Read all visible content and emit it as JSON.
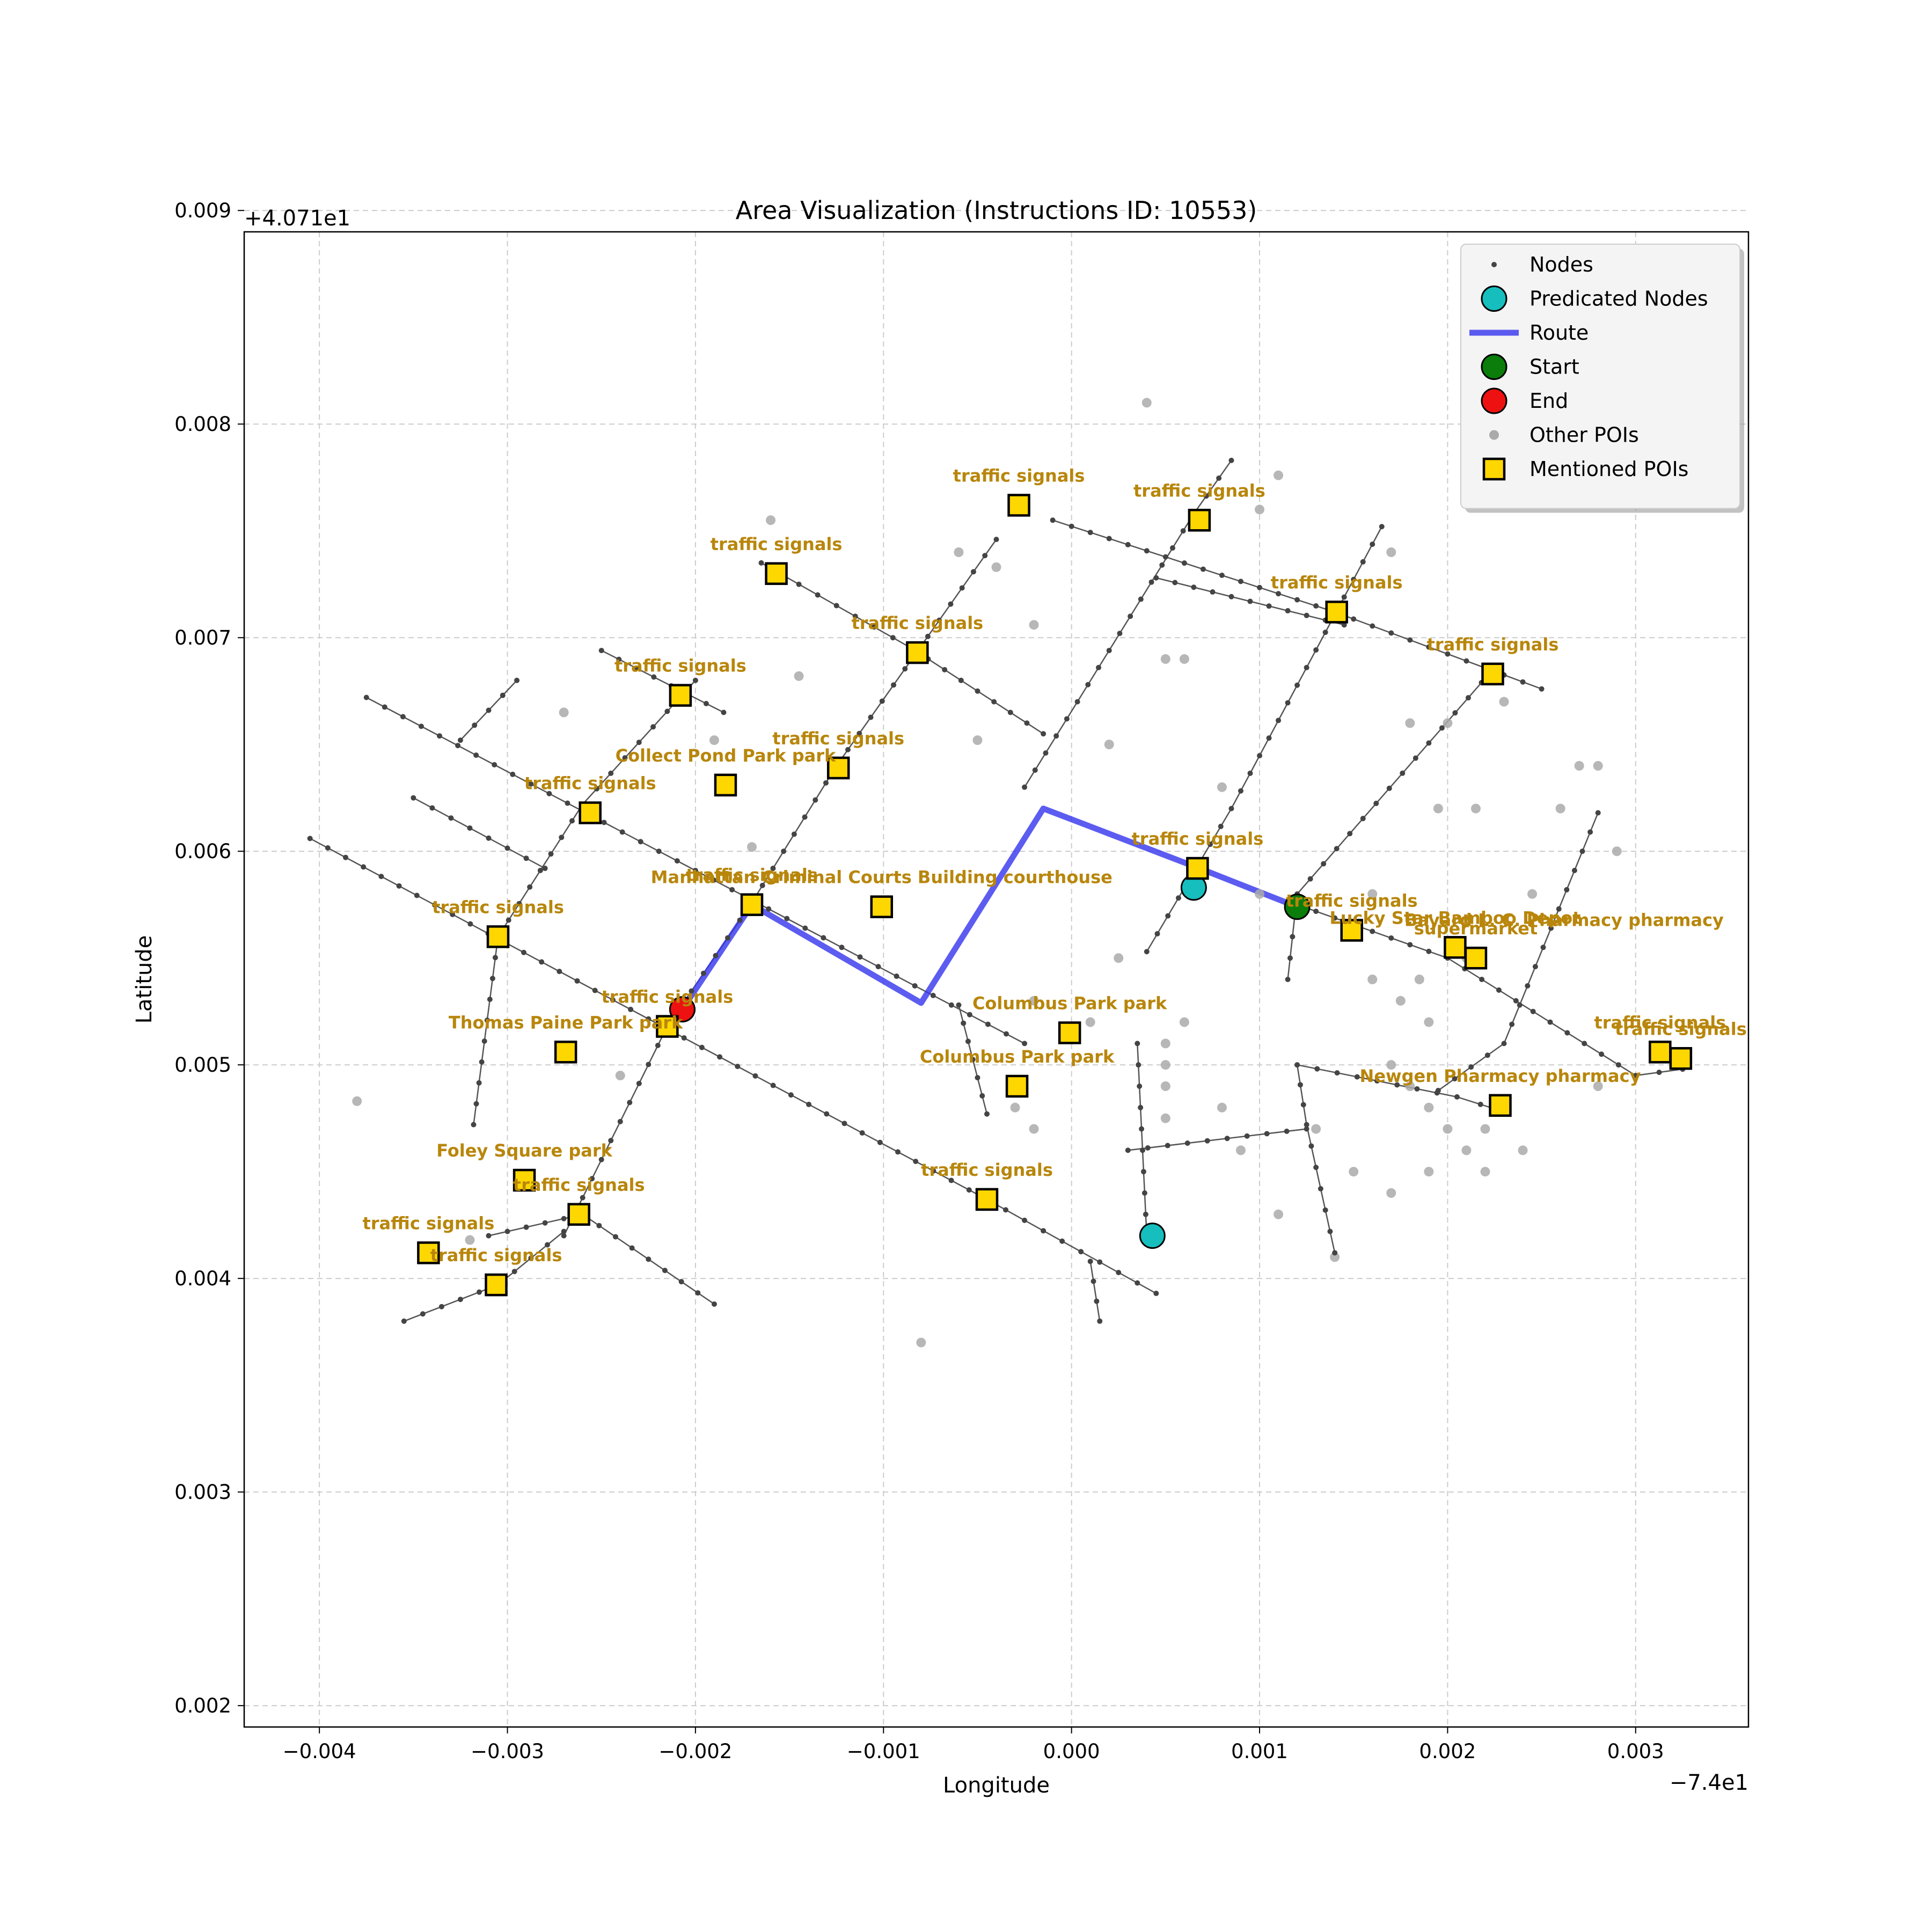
{
  "chart_data": {
    "type": "map",
    "title": "Area Visualization (Instructions ID: 10553)",
    "xlabel": "Longitude",
    "ylabel": "Latitude",
    "x_offset_label": "−7.4e1",
    "y_offset_label": "+4.071e1",
    "xlim": [
      -0.0044,
      0.0036
    ],
    "ylim": [
      0.0019,
      0.0089
    ],
    "x_ticks": [
      -0.004,
      -0.003,
      -0.002,
      -0.001,
      0.0,
      0.001,
      0.002,
      0.003
    ],
    "x_tick_labels": [
      "−0.004",
      "−0.003",
      "−0.002",
      "−0.001",
      "0.000",
      "0.001",
      "0.002",
      "0.003"
    ],
    "y_ticks": [
      0.002,
      0.003,
      0.004,
      0.005,
      0.006,
      0.007,
      0.008,
      0.009
    ],
    "y_tick_labels": [
      "0.002",
      "0.003",
      "0.004",
      "0.005",
      "0.006",
      "0.007",
      "0.008",
      "0.009"
    ],
    "grid": true,
    "legend": {
      "placement": "top-right",
      "entries": [
        {
          "name": "Nodes",
          "marker": "node"
        },
        {
          "name": "Predicated Nodes",
          "marker": "predicated"
        },
        {
          "name": "Route",
          "marker": "route"
        },
        {
          "name": "Start",
          "marker": "start"
        },
        {
          "name": "End",
          "marker": "end"
        },
        {
          "name": "Other POIs",
          "marker": "other"
        },
        {
          "name": "Mentioned POIs",
          "marker": "mentioned"
        }
      ]
    },
    "colors": {
      "node": "#444444",
      "edge": "#555555",
      "route": "#3333ee",
      "predicated": "#17bebe",
      "start": "#0a7d0a",
      "end": "#ee1111",
      "other_poi": "#aaaaaa",
      "mentioned_poi": "#ffd700",
      "poi_label": "#b8860b"
    },
    "edges": [
      [
        [
          -0.00405,
          0.00606
        ],
        [
          -0.00045,
          0.00437
        ],
        [
          0.00045,
          0.00393
        ]
      ],
      [
        [
          -0.00375,
          0.00672
        ],
        [
          -0.00025,
          0.0051
        ]
      ],
      [
        [
          -0.0035,
          0.00625
        ],
        [
          -0.0028,
          0.00592
        ]
      ],
      [
        [
          -0.0025,
          0.00694
        ],
        [
          -0.00185,
          0.00665
        ]
      ],
      [
        [
          -0.00355,
          0.0038
        ],
        [
          -0.00305,
          0.00397
        ],
        [
          -0.0027,
          0.00422
        ]
      ],
      [
        [
          -0.0031,
          0.0042
        ],
        [
          -0.0026,
          0.0043
        ],
        [
          -0.0019,
          0.00388
        ]
      ],
      [
        [
          -0.00318,
          0.00472
        ],
        [
          -0.00305,
          0.0056
        ],
        [
          -0.0026,
          0.00622
        ],
        [
          -0.002,
          0.0068
        ]
      ],
      [
        [
          -0.00325,
          0.00652
        ],
        [
          -0.00295,
          0.0068
        ]
      ],
      [
        [
          -0.0027,
          0.0042
        ],
        [
          -0.00215,
          0.00518
        ],
        [
          -0.0017,
          0.00576
        ],
        [
          -0.00125,
          0.0064
        ],
        [
          -0.0004,
          0.00746
        ]
      ],
      [
        [
          -0.00165,
          0.00735
        ],
        [
          -0.00085,
          0.00695
        ],
        [
          -0.00015,
          0.00655
        ]
      ],
      [
        [
          -0.0001,
          0.00755
        ],
        [
          0.0014,
          0.00712
        ],
        [
          0.0025,
          0.00676
        ]
      ],
      [
        [
          -0.00025,
          0.0063
        ],
        [
          0.00065,
          0.00758
        ],
        [
          0.00085,
          0.00783
        ]
      ],
      [
        [
          0.00045,
          0.00728
        ],
        [
          0.00145,
          0.00706
        ]
      ],
      [
        [
          0.0004,
          0.00553
        ],
        [
          0.00085,
          0.0062
        ],
        [
          0.00165,
          0.00752
        ]
      ],
      [
        [
          0.00035,
          0.0051
        ],
        [
          0.0004,
          0.0042
        ]
      ],
      [
        [
          0.0003,
          0.0046
        ],
        [
          0.00125,
          0.0047
        ]
      ],
      [
        [
          0.0012,
          0.005
        ],
        [
          0.00125,
          0.00472
        ],
        [
          0.0014,
          0.00412
        ]
      ],
      [
        [
          0.00115,
          0.0054
        ],
        [
          0.0012,
          0.0058
        ],
        [
          0.00225,
          0.00686
        ]
      ],
      [
        [
          0.0012,
          0.005
        ],
        [
          0.00205,
          0.00485
        ],
        [
          0.0023,
          0.00478
        ]
      ],
      [
        [
          0.0012,
          0.00575
        ],
        [
          0.002,
          0.0055
        ],
        [
          0.003,
          0.00495
        ],
        [
          0.00325,
          0.00498
        ]
      ],
      [
        [
          0.00195,
          0.00488
        ],
        [
          0.0023,
          0.0051
        ],
        [
          0.0028,
          0.00618
        ]
      ],
      [
        [
          -0.0006,
          0.00528
        ],
        [
          -0.00045,
          0.00477
        ]
      ],
      [
        [
          0.0001,
          0.00408
        ],
        [
          0.00015,
          0.0038
        ]
      ]
    ],
    "route": [
      [
        -0.00207,
        0.00526
      ],
      [
        -0.0017,
        0.00575
      ],
      [
        -0.0008,
        0.00529
      ],
      [
        -0.00015,
        0.0062
      ],
      [
        0.00068,
        0.00592
      ],
      [
        0.0012,
        0.00574
      ]
    ],
    "start": [
      0.0012,
      0.00574
    ],
    "end": [
      -0.00207,
      0.00526
    ],
    "predicated_nodes": [
      [
        0.00065,
        0.00583
      ],
      [
        0.00043,
        0.0042
      ]
    ],
    "other_pois": [
      [
        -0.0016,
        0.00755
      ],
      [
        -0.00145,
        0.00682
      ],
      [
        -0.0019,
        0.00652
      ],
      [
        -0.0027,
        0.00665
      ],
      [
        -0.0017,
        0.00602
      ],
      [
        -0.0024,
        0.00495
      ],
      [
        -0.0038,
        0.00483
      ],
      [
        -0.0032,
        0.00418
      ],
      [
        -0.0006,
        0.0074
      ],
      [
        -0.0004,
        0.00733
      ],
      [
        -0.0002,
        0.00706
      ],
      [
        -0.0005,
        0.00652
      ],
      [
        0.0004,
        0.0081
      ],
      [
        0.0005,
        0.0069
      ],
      [
        0.0006,
        0.0069
      ],
      [
        0.0011,
        0.00776
      ],
      [
        0.001,
        0.0076
      ],
      [
        0.0017,
        0.0074
      ],
      [
        0.0018,
        0.0066
      ],
      [
        0.002,
        0.0066
      ],
      [
        0.0023,
        0.0067
      ],
      [
        0.0026,
        0.0062
      ],
      [
        0.0027,
        0.0064
      ],
      [
        0.0028,
        0.0064
      ],
      [
        0.0029,
        0.006
      ],
      [
        0.00195,
        0.0062
      ],
      [
        0.00215,
        0.0062
      ],
      [
        0.0016,
        0.0058
      ],
      [
        0.00185,
        0.0054
      ],
      [
        0.00175,
        0.0053
      ],
      [
        0.0019,
        0.0052
      ],
      [
        0.0017,
        0.005
      ],
      [
        0.0018,
        0.0049
      ],
      [
        0.0019,
        0.0048
      ],
      [
        0.002,
        0.0047
      ],
      [
        0.0021,
        0.0046
      ],
      [
        0.0022,
        0.0047
      ],
      [
        0.0023,
        0.0048
      ],
      [
        0.0024,
        0.0046
      ],
      [
        0.0015,
        0.0045
      ],
      [
        0.0013,
        0.0047
      ],
      [
        0.0017,
        0.0044
      ],
      [
        0.0019,
        0.0045
      ],
      [
        0.0014,
        0.0041
      ],
      [
        0.0011,
        0.0043
      ],
      [
        0.0009,
        0.0046
      ],
      [
        0.0008,
        0.0048
      ],
      [
        0.0006,
        0.0052
      ],
      [
        0.0005,
        0.0051
      ],
      [
        0.0005,
        0.005
      ],
      [
        0.0005,
        0.0049
      ],
      [
        0.0005,
        0.00475
      ],
      [
        0.00025,
        0.0055
      ],
      [
        0.0001,
        0.0052
      ],
      [
        -0.0002,
        0.0053
      ],
      [
        -0.0002,
        0.0047
      ],
      [
        -0.0003,
        0.0048
      ],
      [
        0.0002,
        0.0065
      ],
      [
        0.0008,
        0.0063
      ],
      [
        0.001,
        0.0058
      ],
      [
        -0.0008,
        0.0037
      ],
      [
        0.0028,
        0.0049
      ],
      [
        0.00245,
        0.0058
      ],
      [
        0.0021,
        0.0055
      ],
      [
        0.0022,
        0.0045
      ],
      [
        0.0016,
        0.0054
      ]
    ],
    "mentioned_pois": [
      {
        "x": -0.00028,
        "y": 0.00762,
        "label": "traffic signals"
      },
      {
        "x": 0.00068,
        "y": 0.00755,
        "label": "traffic signals"
      },
      {
        "x": -0.00157,
        "y": 0.0073,
        "label": "traffic signals"
      },
      {
        "x": 0.00141,
        "y": 0.00712,
        "label": "traffic signals"
      },
      {
        "x": -0.00082,
        "y": 0.00693,
        "label": "traffic signals"
      },
      {
        "x": 0.00224,
        "y": 0.00683,
        "label": "traffic signals"
      },
      {
        "x": -0.00208,
        "y": 0.00673,
        "label": "traffic signals"
      },
      {
        "x": -0.00124,
        "y": 0.00639,
        "label": "traffic signals"
      },
      {
        "x": -0.00184,
        "y": 0.00631,
        "label": "Collect Pond Park   park"
      },
      {
        "x": -0.00256,
        "y": 0.00618,
        "label": "traffic signals"
      },
      {
        "x": 0.00067,
        "y": 0.00592,
        "label": "traffic signals"
      },
      {
        "x": -0.0017,
        "y": 0.00575,
        "label": "traffic signals"
      },
      {
        "x": -0.00101,
        "y": 0.00574,
        "label": "Manhattan Criminal Courts Building courthouse"
      },
      {
        "x": 0.00149,
        "y": 0.00563,
        "label": "traffic signals"
      },
      {
        "x": -0.00305,
        "y": 0.0056,
        "label": "traffic signals"
      },
      {
        "x": 0.00204,
        "y": 0.00555,
        "label": "Lucky Star Bamboo Depot"
      },
      {
        "x": 0.00215,
        "y": 0.0055,
        "label": "   supermarket"
      },
      {
        "x": -0.00215,
        "y": 0.00518,
        "label": "traffic signals"
      },
      {
        "x": -1e-05,
        "y": 0.00515,
        "label": "Columbus Park   park"
      },
      {
        "x": -0.00269,
        "y": 0.00506,
        "label": "Thomas Paine Park   park"
      },
      {
        "x": 0.00313,
        "y": 0.00506,
        "label": "traffic signals"
      },
      {
        "x": 0.00324,
        "y": 0.00503,
        "label": "traffic signals"
      },
      {
        "x": -0.00029,
        "y": 0.0049,
        "label": "Columbus Park   park"
      },
      {
        "x": 0.00228,
        "y": 0.00481,
        "label": "Newgen Pharmacy pharmacy"
      },
      {
        "x": -0.00291,
        "y": 0.00446,
        "label": "Foley Square   park"
      },
      {
        "x": -0.00045,
        "y": 0.00437,
        "label": "traffic signals"
      },
      {
        "x": -0.00262,
        "y": 0.0043,
        "label": "traffic signals"
      },
      {
        "x": -0.00342,
        "y": 0.00412,
        "label": "traffic signals"
      },
      {
        "x": -0.00306,
        "y": 0.00397,
        "label": "traffic signals"
      }
    ],
    "extra_labels": [
      {
        "x": 0.00177,
        "y": 0.00565,
        "label": "Bayard L. C. Pharmacy pharmacy"
      }
    ]
  }
}
